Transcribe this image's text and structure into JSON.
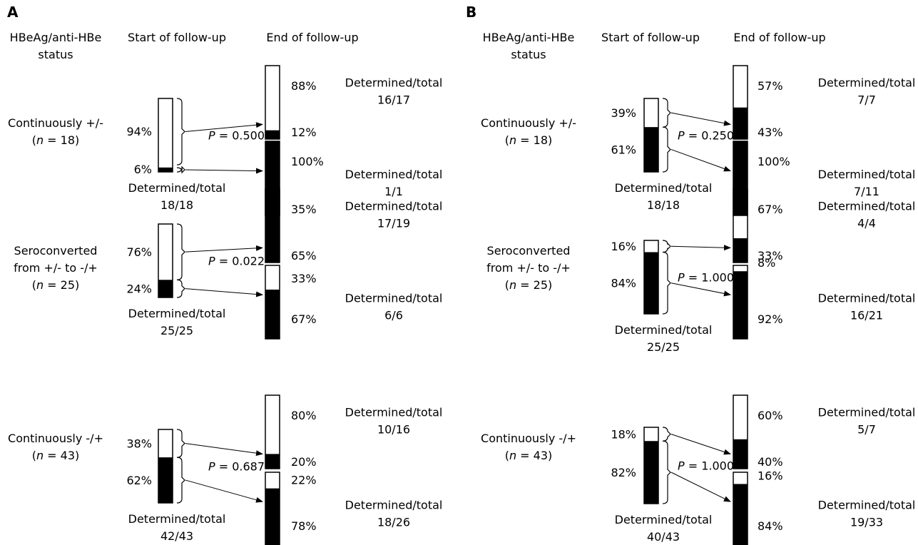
{
  "panels": [
    {
      "letter": "A",
      "headers": {
        "status": "HBeAg/anti-HBe\nstatus",
        "start": "Start of follow-up",
        "end": "End of follow-up"
      },
      "groups": [
        {
          "label": "Continuously +/-\n(n = 18)",
          "start": {
            "top_pct": "94%",
            "bottom_pct": "6%",
            "black_fraction": 0.06,
            "determined": "Determined/total\n18/18"
          },
          "p_value": "P = 0.500",
          "end": [
            {
              "top_pct": "88%",
              "bottom_pct": "12%",
              "black_fraction": 0.12,
              "determined": "Determined/total\n16/17"
            },
            {
              "top_pct": "",
              "bottom_pct": "100%",
              "black_fraction": 1.0,
              "determined": "Determined/total\n1/1"
            }
          ]
        },
        {
          "label": "Seroconverted\nfrom +/- to -/+\n(n = 25)",
          "start": {
            "top_pct": "76%",
            "bottom_pct": "24%",
            "black_fraction": 0.24,
            "determined": "Determined/total\n25/25"
          },
          "p_value": "P = 0.022",
          "end": [
            {
              "top_pct": "35%",
              "bottom_pct": "65%",
              "black_fraction": 0.65,
              "determined": "Determined/total\n17/19"
            },
            {
              "top_pct": "33%",
              "bottom_pct": "67%",
              "black_fraction": 0.67,
              "determined": "Determined/total\n6/6"
            }
          ]
        },
        {
          "label": "Continuously -/+\n(n = 43)",
          "start": {
            "top_pct": "38%",
            "bottom_pct": "62%",
            "black_fraction": 0.62,
            "determined": "Determined/total\n42/43"
          },
          "p_value": "P = 0.687",
          "end": [
            {
              "top_pct": "80%",
              "bottom_pct": "20%",
              "black_fraction": 0.2,
              "determined": "Determined/total\n10/16"
            },
            {
              "top_pct": "22%",
              "bottom_pct": "78%",
              "black_fraction": 0.78,
              "determined": "Determined/total\n18/26"
            }
          ]
        }
      ]
    },
    {
      "letter": "B",
      "headers": {
        "status": "HBeAg/anti-HBe\nstatus",
        "start": "Start of follow-up",
        "end": "End of follow-up"
      },
      "groups": [
        {
          "label": "Continuously +/-\n(n = 18)",
          "start": {
            "top_pct": "39%",
            "bottom_pct": "61%",
            "black_fraction": 0.61,
            "determined": "Determined/total\n18/18"
          },
          "p_value": "P = 0.250",
          "end": [
            {
              "top_pct": "57%",
              "bottom_pct": "43%",
              "black_fraction": 0.43,
              "determined": "Determined/total\n7/7"
            },
            {
              "top_pct": "",
              "bottom_pct": "100%",
              "black_fraction": 1.0,
              "determined": "Determined/total\n7/11"
            }
          ]
        },
        {
          "label": "Seroconverted\nfrom +/- to -/+\n(n = 25)",
          "start": {
            "top_pct": "16%",
            "bottom_pct": "84%",
            "black_fraction": 0.84,
            "determined": "Determined/total\n25/25"
          },
          "p_value": "P = 1.000",
          "end": [
            {
              "top_pct": "67%",
              "bottom_pct": "33%",
              "black_fraction": 0.33,
              "determined": "Determined/total\n4/4"
            },
            {
              "top_pct": "8%",
              "bottom_pct": "92%",
              "black_fraction": 0.92,
              "determined": "Determined/total\n16/21"
            }
          ]
        },
        {
          "label": "Continuously -/+\n(n = 43)",
          "start": {
            "top_pct": "18%",
            "bottom_pct": "82%",
            "black_fraction": 0.82,
            "determined": "Determined/total\n40/43"
          },
          "p_value": "P = 1.000",
          "end": [
            {
              "top_pct": "60%",
              "bottom_pct": "40%",
              "black_fraction": 0.4,
              "determined": "Determined/total\n5/7"
            },
            {
              "top_pct": "16%",
              "bottom_pct": "84%",
              "black_fraction": 0.84,
              "determined": "Determined/total\n19/33"
            }
          ]
        }
      ]
    }
  ]
}
